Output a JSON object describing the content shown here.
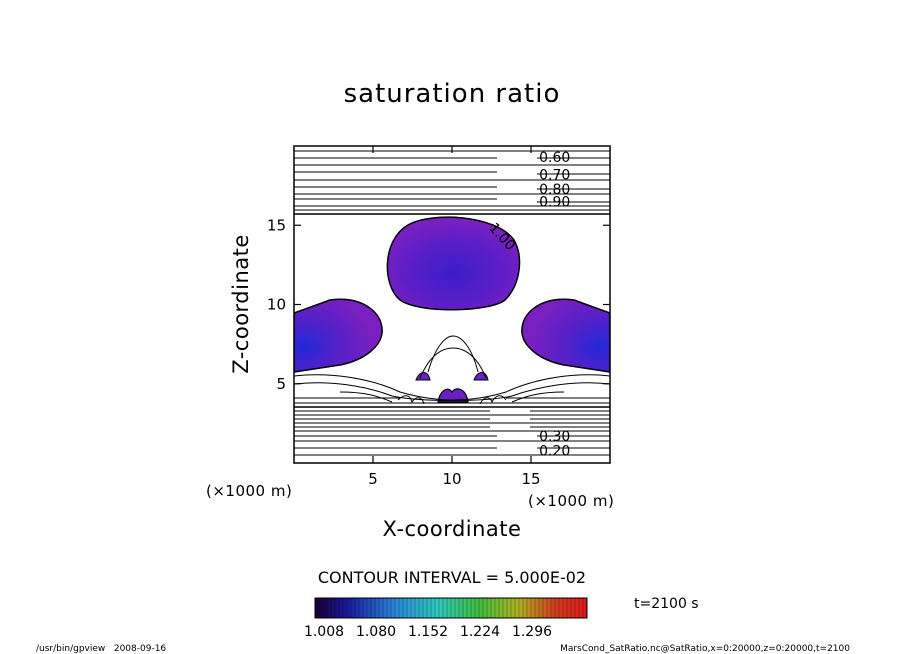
{
  "chart_data": {
    "type": "contour",
    "title": "saturation ratio",
    "xlabel": "X-coordinate",
    "ylabel": "Z-coordinate",
    "xunit": "(×1000 m)",
    "yunit": "(×1000 m)",
    "xlim": [
      0,
      20
    ],
    "ylim": [
      0,
      20
    ],
    "xticks": [
      5,
      10,
      15
    ],
    "yticks": [
      5,
      10,
      15
    ],
    "contour_interval_text": "CONTOUR INTERVAL = 5.000E-02",
    "contour_labels": [
      {
        "text": "0.60",
        "x": 16.5,
        "z": 19.3
      },
      {
        "text": "0.70",
        "x": 16.5,
        "z": 18.2
      },
      {
        "text": "0.80",
        "x": 16.5,
        "z": 17.3
      },
      {
        "text": "0.90",
        "x": 16.5,
        "z": 16.5
      },
      {
        "text": "1.00",
        "x": 13.2,
        "z": 14.3,
        "rotate": 48
      },
      {
        "text": "0.30",
        "x": 16.5,
        "z": 1.7
      },
      {
        "text": "0.20",
        "x": 16.5,
        "z": 0.8
      }
    ],
    "shaded_regions": [
      {
        "name": "upper-core",
        "cx": 10,
        "cz": 12.5
      },
      {
        "name": "left-lobe",
        "cx": 0.7,
        "cz": 6.8
      },
      {
        "name": "right-lobe",
        "cx": 19.3,
        "cz": 6.8
      },
      {
        "name": "lower-small",
        "cx": 10,
        "cz": 4
      }
    ],
    "colorbar": {
      "tick_labels": [
        "1.008",
        "1.080",
        "1.152",
        "1.224",
        "1.296"
      ],
      "min": 1.008,
      "max": 1.296
    },
    "time_label": "t=2100 s"
  },
  "footer": {
    "left": "/usr/bin/gpview   2008-09-16",
    "right": "MarsCond_SatRatio.nc@SatRatio,x=0:20000,z=0:20000,t=2100"
  }
}
